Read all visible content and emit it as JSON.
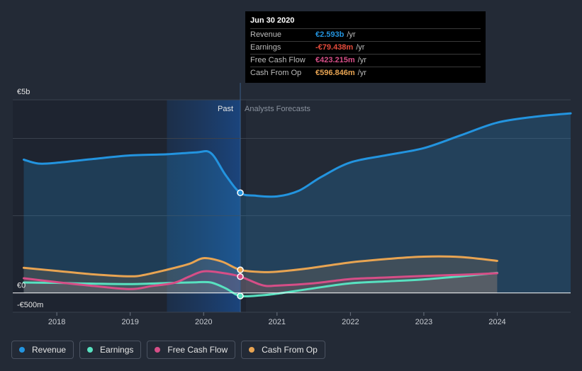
{
  "chart_data": {
    "type": "area",
    "x_ticks": [
      "2018",
      "2019",
      "2020",
      "2021",
      "2022",
      "2023",
      "2024"
    ],
    "y_tick_labels": [
      {
        "label": "€5b",
        "value": 5000
      },
      {
        "label": "€0",
        "value": 0
      },
      {
        "label": "-€500m",
        "value": -500
      }
    ],
    "ylim": [
      -500,
      5000
    ],
    "xlim": [
      2017.4,
      2025.0
    ],
    "divider_x": 2020.5,
    "highlight_range": [
      2019.5,
      2020.5
    ],
    "past_label": "Past",
    "forecast_label": "Analysts Forecasts",
    "series": [
      {
        "name": "Revenue",
        "color": "#2394df",
        "x": [
          2017.55,
          2017.75,
          2018.0,
          2018.5,
          2019.0,
          2019.5,
          2019.9,
          2020.1,
          2020.3,
          2020.5,
          2020.7,
          2021.0,
          2021.3,
          2021.6,
          2022.0,
          2022.5,
          2023.0,
          2023.5,
          2024.0,
          2024.5,
          2025.0
        ],
        "y": [
          3450,
          3350,
          3370,
          3470,
          3560,
          3590,
          3640,
          3620,
          3050,
          2593,
          2520,
          2500,
          2650,
          3000,
          3380,
          3570,
          3750,
          4080,
          4410,
          4560,
          4650
        ]
      },
      {
        "name": "Earnings",
        "color": "#58e1c0",
        "x": [
          2017.55,
          2018.0,
          2018.5,
          2019.0,
          2019.5,
          2019.9,
          2020.1,
          2020.3,
          2020.5,
          2020.8,
          2021.0,
          2021.5,
          2022.0,
          2022.5,
          2023.0,
          2023.5,
          2024.0
        ],
        "y": [
          270,
          260,
          240,
          230,
          255,
          275,
          270,
          120,
          -79,
          -60,
          -20,
          120,
          250,
          300,
          350,
          430,
          520
        ]
      },
      {
        "name": "Free Cash Flow",
        "color": "#d64e87",
        "x": [
          2017.55,
          2018.0,
          2018.5,
          2019.0,
          2019.3,
          2019.6,
          2019.8,
          2020.0,
          2020.25,
          2020.5,
          2020.8,
          2021.0,
          2021.5,
          2022.0,
          2022.5,
          2023.0,
          2023.5,
          2024.0
        ],
        "y": [
          380,
          280,
          180,
          100,
          180,
          260,
          420,
          560,
          520,
          423,
          200,
          190,
          250,
          360,
          400,
          440,
          470,
          510
        ]
      },
      {
        "name": "Cash From Op",
        "color": "#e8a452",
        "x": [
          2017.55,
          2018.0,
          2018.5,
          2019.0,
          2019.2,
          2019.5,
          2019.8,
          2020.0,
          2020.25,
          2020.5,
          2020.8,
          2021.0,
          2021.4,
          2022.0,
          2022.5,
          2023.0,
          2023.5,
          2024.0
        ],
        "y": [
          650,
          570,
          480,
          430,
          470,
          600,
          750,
          900,
          810,
          597,
          540,
          550,
          630,
          790,
          880,
          940,
          930,
          830
        ]
      }
    ],
    "tooltip": {
      "date": "Jun 30 2020",
      "rows": [
        {
          "label": "Revenue",
          "value": "€2.593b",
          "unit": "/yr",
          "color": "#2394df"
        },
        {
          "label": "Earnings",
          "value": "-€79.438m",
          "unit": "/yr",
          "color": "#e74c3c"
        },
        {
          "label": "Free Cash Flow",
          "value": "€423.215m",
          "unit": "/yr",
          "color": "#d64e87"
        },
        {
          "label": "Cash From Op",
          "value": "€596.846m",
          "unit": "/yr",
          "color": "#e8a452"
        }
      ]
    }
  },
  "legend": [
    {
      "label": "Revenue",
      "color": "#2394df"
    },
    {
      "label": "Earnings",
      "color": "#58e1c0"
    },
    {
      "label": "Free Cash Flow",
      "color": "#d64e87"
    },
    {
      "label": "Cash From Op",
      "color": "#e8a452"
    }
  ]
}
